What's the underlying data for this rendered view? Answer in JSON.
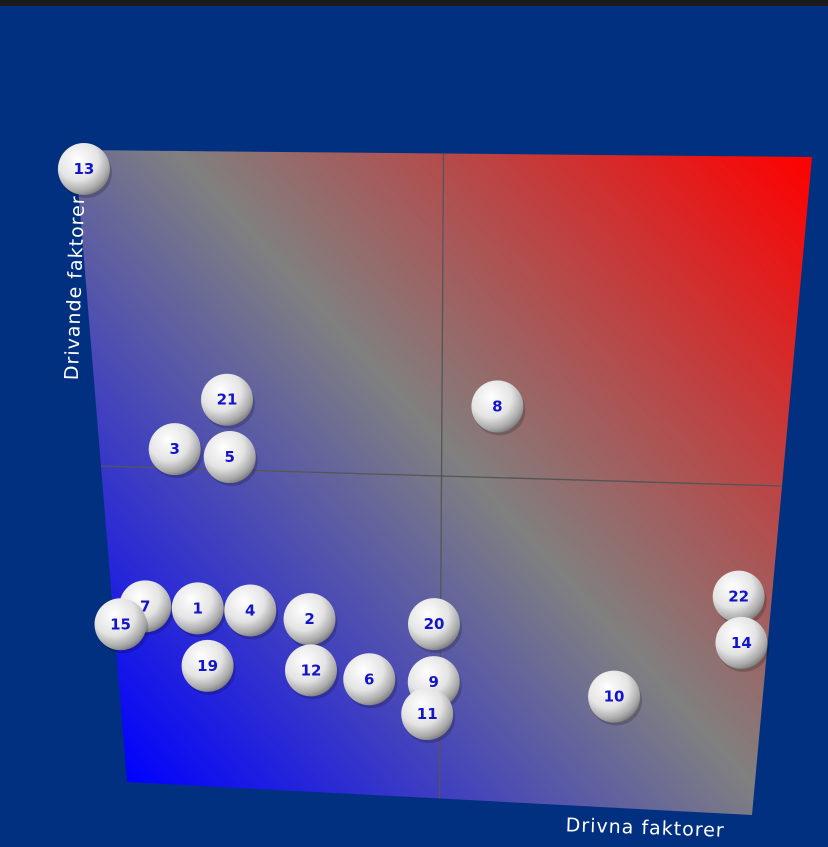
{
  "chart_data": {
    "type": "scatter",
    "xlabel": "Drivna faktorer",
    "ylabel": "Drivande faktorer",
    "xlim": [
      0,
      10
    ],
    "ylim": [
      0,
      10
    ],
    "midpoint": [
      5,
      5
    ],
    "grid": false,
    "legend": "none",
    "gradient": {
      "low_corner": "#0000ff",
      "middle": "#808080",
      "high_corner": "#ff0000"
    },
    "points": [
      {
        "label": "13",
        "x": 0.1,
        "y": 9.7
      },
      {
        "label": "21",
        "x": 1.9,
        "y": 6.1
      },
      {
        "label": "8",
        "x": 5.8,
        "y": 6.1
      },
      {
        "label": "3",
        "x": 1.1,
        "y": 5.3
      },
      {
        "label": "5",
        "x": 1.9,
        "y": 5.2
      },
      {
        "label": "22",
        "x": 9.5,
        "y": 3.3
      },
      {
        "label": "7",
        "x": 0.5,
        "y": 2.8
      },
      {
        "label": "1",
        "x": 1.3,
        "y": 2.8
      },
      {
        "label": "4",
        "x": 2.1,
        "y": 2.8
      },
      {
        "label": "2",
        "x": 3.0,
        "y": 2.7
      },
      {
        "label": "20",
        "x": 4.9,
        "y": 2.7
      },
      {
        "label": "14",
        "x": 9.6,
        "y": 2.6
      },
      {
        "label": "15",
        "x": 0.1,
        "y": 2.5
      },
      {
        "label": "19",
        "x": 1.4,
        "y": 1.9
      },
      {
        "label": "12",
        "x": 3.0,
        "y": 1.9
      },
      {
        "label": "6",
        "x": 3.9,
        "y": 1.8
      },
      {
        "label": "9",
        "x": 4.9,
        "y": 1.8
      },
      {
        "label": "10",
        "x": 7.7,
        "y": 1.7
      },
      {
        "label": "11",
        "x": 4.8,
        "y": 1.3
      }
    ]
  },
  "colors": {
    "background": "#023080",
    "axis_text": "#ffffff",
    "ball_text": "#1414c8",
    "divider": "#555555"
  }
}
